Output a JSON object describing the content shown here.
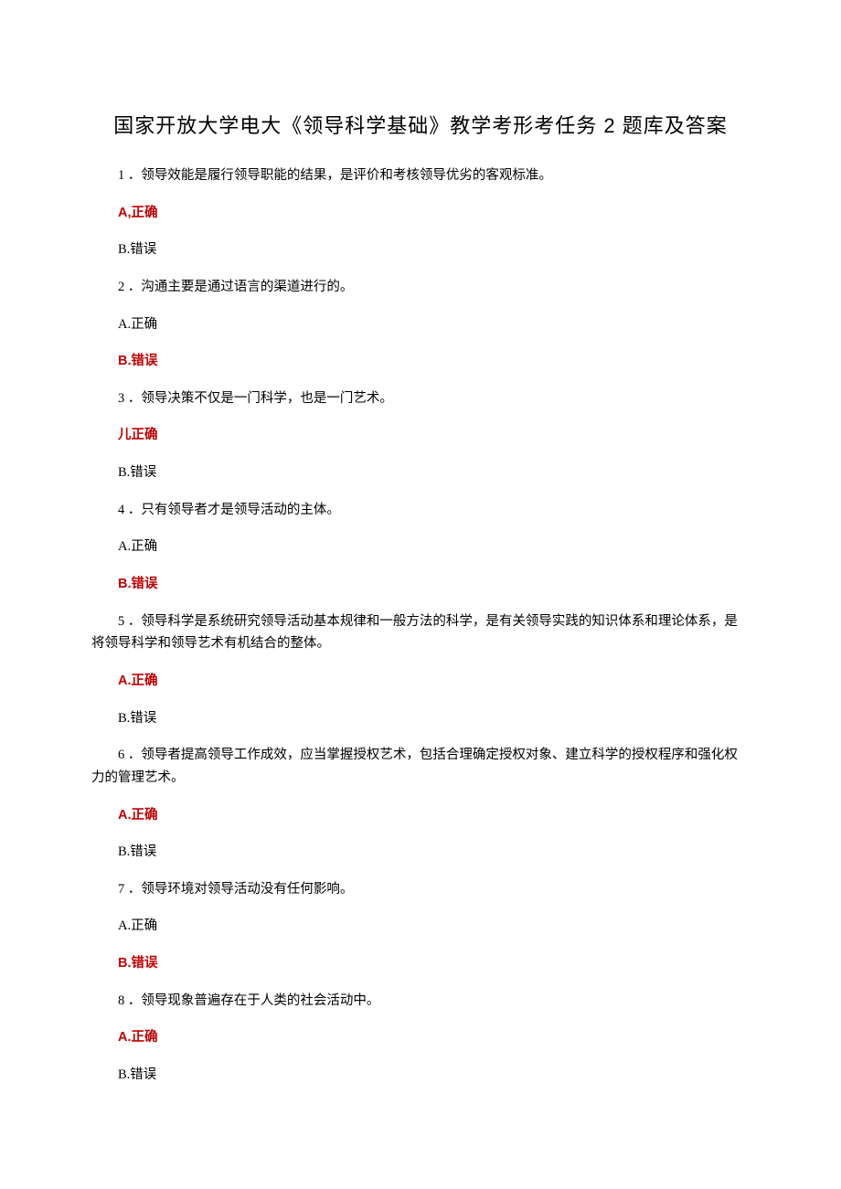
{
  "title": "国家开放大学电大《领导科学基础》教学考形考任务 2 题库及答案",
  "colors": {
    "text": "#000000",
    "highlight": "#c00000",
    "background": "#ffffff"
  },
  "typography": {
    "title_fontsize": 22,
    "body_fontsize": 14.5,
    "title_family": "SimHei",
    "body_family": "SimSun",
    "line_height": 1.7
  },
  "questions": [
    {
      "q": "1 ．领导效能是履行领导职能的结果，是评价和考核领导优劣的客观标准。",
      "a": "A,正确",
      "a_highlight": true,
      "b": "B.错误",
      "b_highlight": false
    },
    {
      "q": "2 ．沟通主要是通过语言的渠道进行的。",
      "a": "A.正确",
      "a_highlight": false,
      "b": "B.错误",
      "b_highlight": true
    },
    {
      "q": "3 ．领导决策不仅是一门科学，也是一门艺术。",
      "a": "儿正确",
      "a_highlight": true,
      "b": "B.错误",
      "b_highlight": false
    },
    {
      "q": "4 ．只有领导者才是领导活动的主体。",
      "a": "A.正确",
      "a_highlight": false,
      "b": "B.错误",
      "b_highlight": true
    },
    {
      "q": "5 ．领导科学是系统研究领导活动基本规律和一般方法的科学，是有关领导实践的知识体系和理论体系，是将领导科学和领导艺术有机结合的整体。",
      "a": "A.正确",
      "a_highlight": true,
      "b": "B.错误",
      "b_highlight": false
    },
    {
      "q": "6 ．领导者提高领导工作成效，应当掌握授权艺术，包括合理确定授权对象、建立科学的授权程序和强化权力的管理艺术。",
      "a": "A.正确",
      "a_highlight": true,
      "b": "B.错误",
      "b_highlight": false
    },
    {
      "q": "7 ．领导环境对领导活动没有任何影响。",
      "a": "A.正确",
      "a_highlight": false,
      "b": "B.错误",
      "b_highlight": true
    },
    {
      "q": "8 ．领导现象普遍存在于人类的社会活动中。",
      "a": "A.正确",
      "a_highlight": true,
      "b": "B.错误",
      "b_highlight": false
    }
  ]
}
